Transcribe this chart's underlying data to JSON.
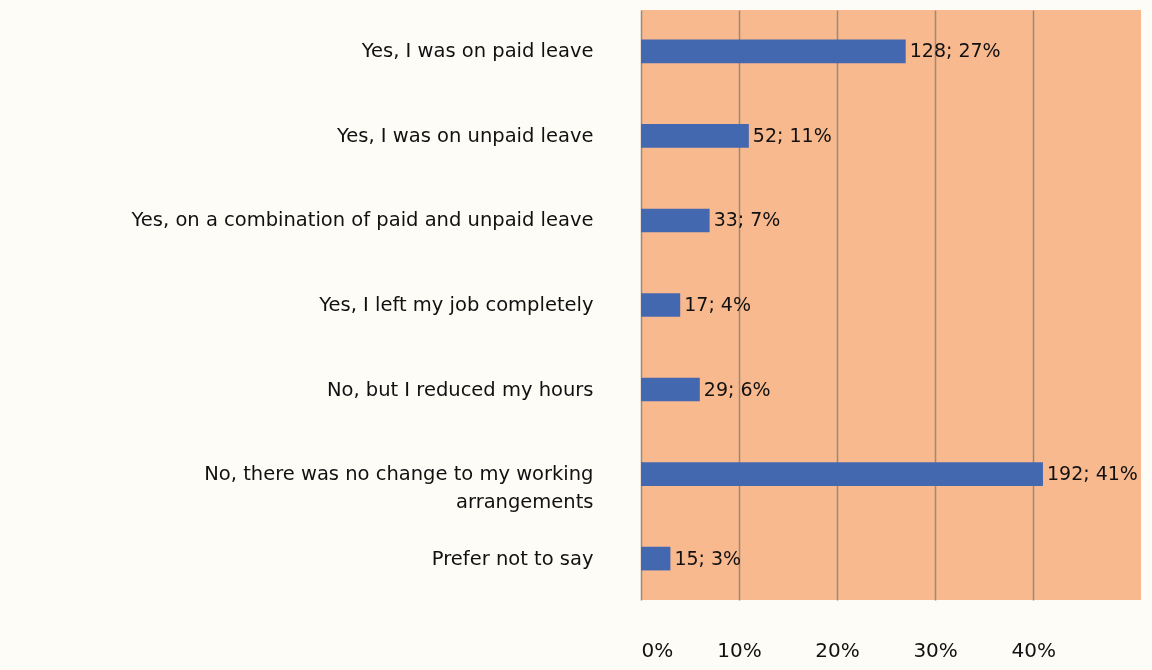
{
  "chart_data": {
    "type": "bar",
    "orientation": "horizontal",
    "categories": [
      "Yes, I was on paid leave",
      "Yes, I was on unpaid leave",
      "Yes, on a combination of paid and unpaid leave",
      "Yes, I left my job completely",
      "No, but I reduced my hours",
      "No, there was no change to my working arrangements",
      "Prefer not to say"
    ],
    "values": [
      27,
      11,
      7,
      4,
      6,
      41,
      3
    ],
    "value_labels": [
      "128; 27%",
      "52; 11%",
      "33; 7%",
      "17; 4%",
      "29; 6%",
      "192; 41%",
      "15; 3%"
    ],
    "color": "#4468b0",
    "xlim": [
      0,
      51
    ],
    "xticks": [
      {
        "value": 0,
        "label": "0%"
      },
      {
        "value": 10,
        "label": "10%"
      },
      {
        "value": 20,
        "label": "20%"
      },
      {
        "value": 30,
        "label": "30%"
      },
      {
        "value": 40,
        "label": "40%"
      }
    ],
    "grid": "x"
  }
}
